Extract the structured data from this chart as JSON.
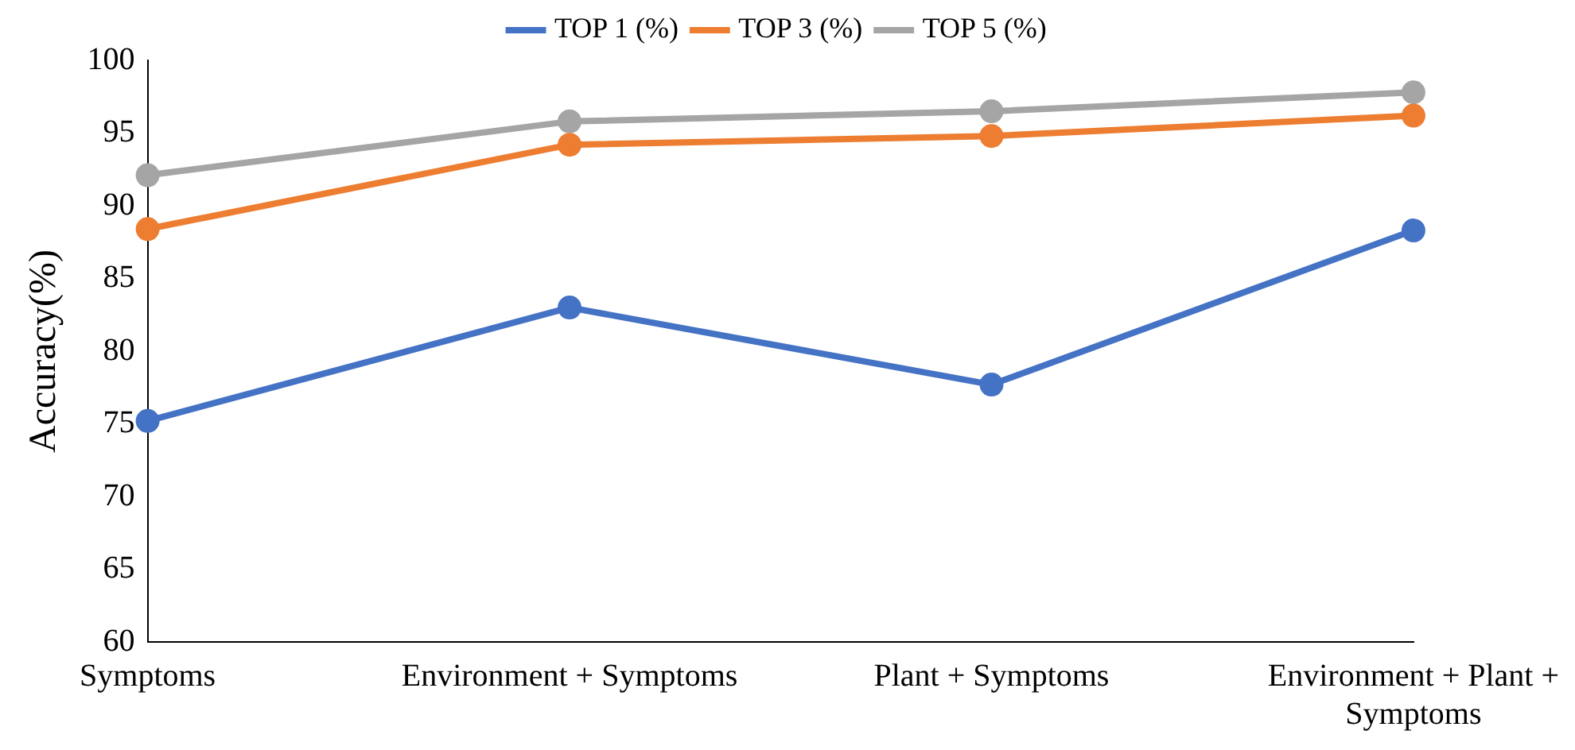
{
  "chart_data": {
    "type": "line",
    "ylabel": "Accuracy(%)",
    "categories": [
      "Symptoms",
      "Environment + Symptoms",
      "Plant + Symptoms",
      "Environment + Plant + Symptoms"
    ],
    "series": [
      {
        "name": "TOP 1 (%)",
        "color": "#4472c4",
        "values": [
          75.2,
          83.0,
          77.7,
          88.3
        ]
      },
      {
        "name": "TOP 3 (%)",
        "color": "#ed7d31",
        "values": [
          88.4,
          94.2,
          94.8,
          96.2
        ]
      },
      {
        "name": "TOP 5 (%)",
        "color": "#a5a5a5",
        "values": [
          92.1,
          95.8,
          96.5,
          97.8
        ]
      }
    ],
    "ylim": [
      60,
      100
    ],
    "yticks": [
      60,
      65,
      70,
      75,
      80,
      85,
      90,
      95,
      100
    ],
    "grid": false,
    "legend": "top",
    "marker": "circle",
    "line_style": "solid"
  }
}
